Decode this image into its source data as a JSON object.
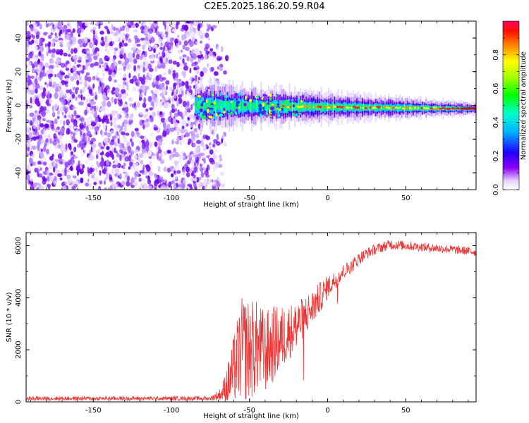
{
  "title": "C2E5.2025.186.20.59.R04",
  "chart_data": [
    {
      "type": "heatmap",
      "xlabel": "Height of straight line (km)",
      "ylabel": "Frequency (Hz)",
      "xlim": [
        -193,
        95
      ],
      "ylim": [
        -50,
        50
      ],
      "xticks": [
        "-150",
        "-100",
        "-50",
        "0",
        "50"
      ],
      "xtick_values": [
        -150,
        -100,
        -50,
        0,
        50
      ],
      "yticks": [
        "-40",
        "-20",
        "0",
        "20",
        "40"
      ],
      "ytick_values": [
        -40,
        -20,
        0,
        20,
        40
      ],
      "noise_region_x": [
        -193,
        -72
      ],
      "signal_ridge": {
        "x_start": -85,
        "x_end": 95,
        "frequency_hz": 0,
        "freq_drift_hz_at_right": -2,
        "spread_hz_at_start": 12,
        "spread_hz_at_end": 3
      },
      "colorbar": {
        "label": "Normalized spectral amplitude",
        "ticks": [
          "0.0",
          "0.2",
          "0.4",
          "0.6",
          "0.8"
        ],
        "tick_values": [
          0.0,
          0.2,
          0.4,
          0.6,
          0.8
        ],
        "range": [
          0,
          1
        ]
      },
      "colors": [
        "#ffffff",
        "#eadcff",
        "#7a00f0",
        "#0000ff",
        "#00ffff",
        "#00ff00",
        "#ffff00",
        "#ff8000",
        "#ff0000",
        "#ff0066"
      ]
    },
    {
      "type": "line",
      "xlabel": "Height of straight line (km)",
      "ylabel": "SNR (10 * v/v)",
      "xlim": [
        -193,
        95
      ],
      "ylim": [
        0,
        6500
      ],
      "xticks": [
        "-150",
        "-100",
        "-50",
        "0",
        "50"
      ],
      "xtick_values": [
        -150,
        -100,
        -50,
        0,
        50
      ],
      "yticks": [
        "0",
        "2000",
        "4000",
        "6000"
      ],
      "ytick_values": [
        0,
        2000,
        4000,
        6000
      ],
      "line_color": "#ee3333",
      "series": [
        {
          "x": [
            -193,
            -150,
            -100,
            -75,
            -68,
            -62,
            -58,
            -55,
            -50,
            -45,
            -40,
            -35,
            -30,
            -25,
            -20,
            -15,
            -10,
            -5,
            0,
            5,
            10,
            15,
            20,
            25,
            30,
            35,
            40,
            50,
            60,
            70,
            80,
            90,
            95
          ],
          "y": [
            130,
            130,
            130,
            130,
            300,
            900,
            1600,
            2000,
            2000,
            2100,
            1900,
            2200,
            2400,
            2700,
            2900,
            3300,
            3600,
            4000,
            4400,
            4700,
            5000,
            5200,
            5500,
            5700,
            5850,
            5950,
            6050,
            6000,
            5950,
            5900,
            5850,
            5800,
            5750
          ],
          "noise_amplitude": [
            80,
            80,
            80,
            80,
            250,
            1100,
            1600,
            2000,
            2000,
            1800,
            1600,
            1500,
            1300,
            1100,
            900,
            800,
            700,
            600,
            450,
            350,
            300,
            280,
            250,
            220,
            200,
            200,
            200,
            180,
            170,
            170,
            170,
            160,
            160
          ]
        }
      ]
    }
  ]
}
